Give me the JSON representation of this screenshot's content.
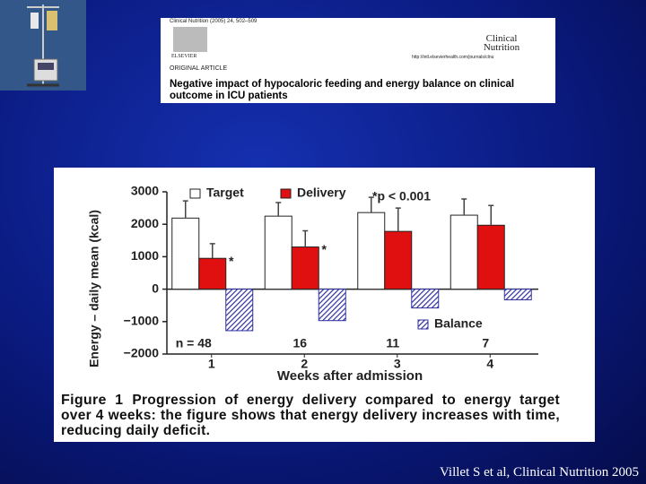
{
  "header": {
    "journal_ref": "Clinical Nutrition (2005) 24, 502–509",
    "publisher": "ELSEVIER",
    "journal": "Clinical Nutrition",
    "url": "http://intl.elsevierhealth.com/journals/clnu",
    "section": "ORIGINAL ARTICLE",
    "title": "Negative impact of hypocaloric feeding and energy balance on clinical outcome in ICU patients"
  },
  "chart_data": {
    "type": "bar",
    "y_label": "Energy – daily mean (kcal)",
    "x_label": "Weeks after admission",
    "categories": [
      "1",
      "2",
      "3",
      "4"
    ],
    "n_labels": [
      "n = 48",
      "16",
      "11",
      "7"
    ],
    "annotations": [
      "*",
      "*",
      "*p < 0.001"
    ],
    "series": [
      {
        "name": "Target",
        "color": "#ffffff",
        "values": [
          2190,
          2250,
          2360,
          2280
        ],
        "errors": [
          530,
          420,
          470,
          500
        ]
      },
      {
        "name": "Delivery",
        "color": "#e01010",
        "values": [
          950,
          1300,
          1780,
          1970
        ],
        "errors": [
          450,
          500,
          720,
          610
        ]
      },
      {
        "name": "Balance",
        "color": "#3030a0",
        "fill": "hatch",
        "values": [
          -1280,
          -970,
          -580,
          -330
        ]
      }
    ],
    "ylim": [
      -2000,
      3000
    ],
    "yticks": [
      {
        "value": -2000,
        "label": "−2000"
      },
      {
        "value": -1000,
        "label": "−1000"
      },
      0,
      1000,
      2000,
      3000
    ]
  },
  "caption": {
    "label": "Figure 1",
    "text": "Progression of energy delivery compared to energy target over 4 weeks: the figure shows that energy delivery increases with time, reducing daily deficit."
  },
  "citation": "Villet S et al, Clinical Nutrition 2005"
}
